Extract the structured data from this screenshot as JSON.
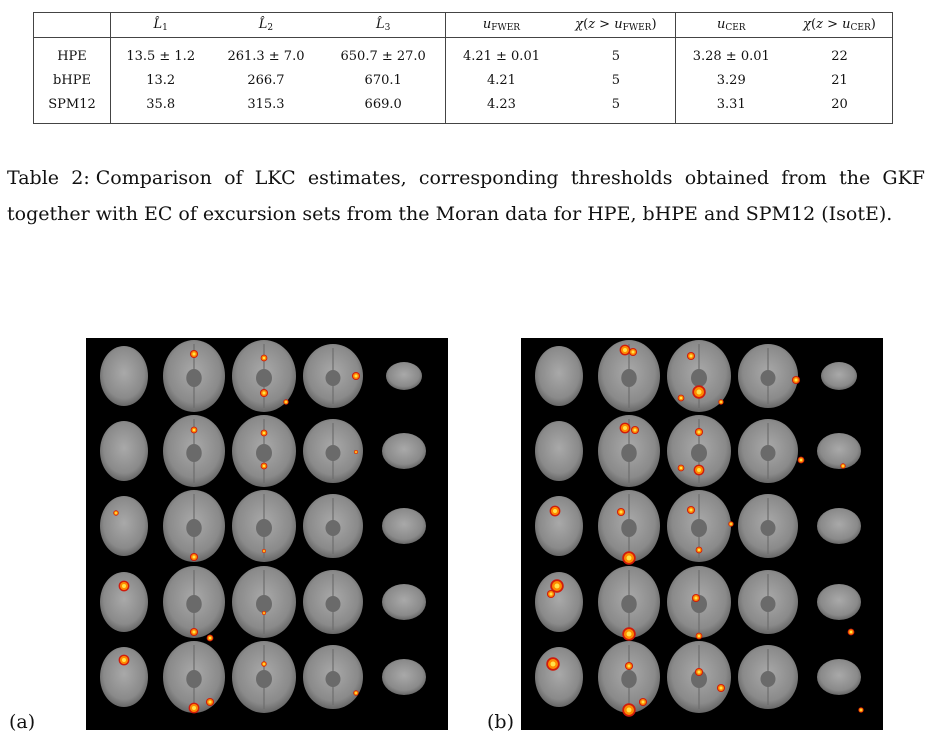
{
  "table": {
    "headers": [
      "",
      "L̂1",
      "L̂2",
      "L̂3",
      "uFWER",
      "χ(z > uFWER)",
      "uCER",
      "χ(z > uCER)"
    ],
    "rows": [
      {
        "label": "HPE",
        "L1": "13.5 ± 1.2",
        "L2": "261.3 ± 7.0",
        "L3": "650.7 ± 27.0",
        "uFWER": "4.21 ± 0.01",
        "chiFWER": "5",
        "uCER": "3.28 ± 0.01",
        "chiCER": "22"
      },
      {
        "label": "bHPE",
        "L1": "13.2",
        "L2": "266.7",
        "L3": "670.1",
        "uFWER": "4.21",
        "chiFWER": "5",
        "uCER": "3.29",
        "chiCER": "21"
      },
      {
        "label": "SPM12",
        "L1": "35.8",
        "L2": "315.3",
        "L3": "669.0",
        "uFWER": "4.23",
        "chiFWER": "5",
        "uCER": "3.31",
        "chiCER": "20"
      }
    ]
  },
  "caption": {
    "label": "Table 2:",
    "text": "Comparison of LKC estimates, corresponding thresholds obtained from the GKF together with EC of excursion sets from the Moran data for HPE, bHPE and SPM12 (IsotE)."
  },
  "figure": {
    "panel_a_label": "(a)",
    "panel_b_label": "(b)",
    "background_color": "#000000",
    "brain_color": "#8a8a8a",
    "activation_colors": [
      "#d01c0c",
      "#ff8a00",
      "#ffe24a"
    ]
  }
}
